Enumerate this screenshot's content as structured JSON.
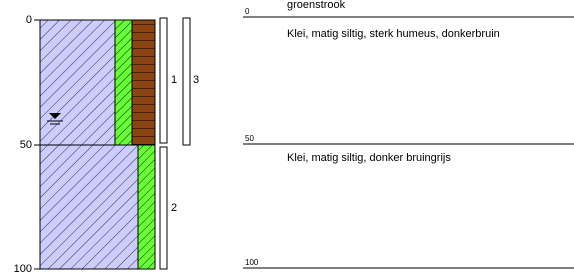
{
  "depth_axis": {
    "ticks": [
      "0",
      "50",
      "100"
    ]
  },
  "samples": [
    {
      "label": "1"
    },
    {
      "label": "3"
    },
    {
      "label": "2"
    }
  ],
  "profile": {
    "depth_labels": [
      "0",
      "50",
      "100"
    ],
    "top_note": "groenstrook",
    "layers": [
      {
        "description": "Klei, matig siltig, sterk humeus, donkerbruin"
      },
      {
        "description": "Klei, matig siltig, donker bruingrijs"
      }
    ]
  }
}
